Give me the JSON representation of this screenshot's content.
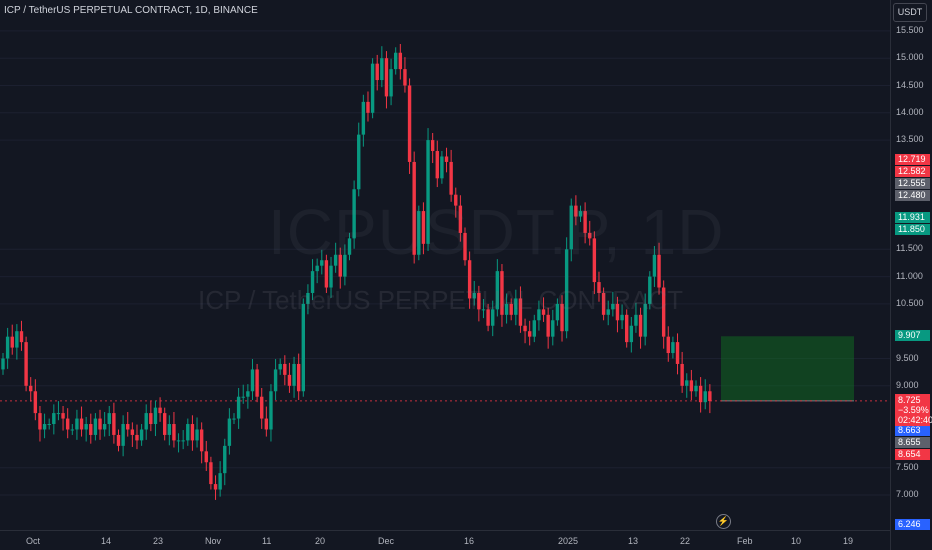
{
  "header": {
    "title": "ICP / TetherUS PERPETUAL CONTRACT, 1D, BINANCE"
  },
  "watermark": {
    "ticker": "ICPUSDT.P, 1D",
    "description": "ICP / TetherUS PERPETUAL CONTRACT"
  },
  "currency_button": {
    "label": "USDT"
  },
  "price_axis": {
    "labels": [
      "15.500",
      "15.000",
      "14.500",
      "14.000",
      "13.500",
      "11.500",
      "11.000",
      "10.500",
      "9.500",
      "9.000",
      "7.500",
      "7.000"
    ]
  },
  "time_axis": {
    "labels": [
      "Oct",
      "14",
      "23",
      "Nov",
      "11",
      "20",
      "Dec",
      "16",
      "2025",
      "13",
      "22",
      "Feb",
      "10",
      "19"
    ]
  },
  "price_badges": [
    {
      "value": "12.719",
      "color": "#f23645"
    },
    {
      "value": "12.582",
      "color": "#f23645"
    },
    {
      "value": "12.555",
      "color": "#5d606b"
    },
    {
      "value": "12.480",
      "color": "#5d606b"
    },
    {
      "value": "11.931",
      "color": "#089981"
    },
    {
      "value": "11.850",
      "color": "#089981"
    },
    {
      "value": "9.907",
      "color": "#089981"
    },
    {
      "value": "8.663",
      "color": "#2962ff"
    },
    {
      "value": "8.655",
      "color": "#5d606b"
    },
    {
      "value": "8.654",
      "color": "#f23645"
    },
    {
      "value": "6.246",
      "color": "#2962ff"
    }
  ],
  "last_price": {
    "value": "8.725",
    "change": "−3.59%",
    "countdown": "02:42:40",
    "color": "#f23645"
  },
  "colors": {
    "up": "#089981",
    "down": "#f23645",
    "background": "#131722",
    "zone": "#1e5b25"
  },
  "icons": {
    "live": "lightning-icon"
  },
  "chart_data": {
    "type": "candlestick",
    "title": "ICP / TetherUS PERPETUAL CONTRACT, 1D, BINANCE",
    "timeframe": "1D",
    "currency": "USDT",
    "ylim": [
      6.6,
      15.8
    ],
    "x_ticks": [
      "Oct",
      "14",
      "23",
      "Nov",
      "11",
      "20",
      "Dec",
      "16",
      "2025",
      "13",
      "22",
      "Feb",
      "10",
      "19"
    ],
    "y_ticks": [
      7.0,
      7.5,
      9.0,
      9.5,
      10.5,
      11.0,
      11.5,
      13.5,
      14.0,
      14.5,
      15.0,
      15.5
    ],
    "closes": [
      9.5,
      9.9,
      9.7,
      10.0,
      9.8,
      9.0,
      8.9,
      8.5,
      8.2,
      8.3,
      8.3,
      8.5,
      8.5,
      8.4,
      8.2,
      8.2,
      8.4,
      8.2,
      8.3,
      8.1,
      8.4,
      8.2,
      8.3,
      8.5,
      8.1,
      7.9,
      8.3,
      8.2,
      8.1,
      8.0,
      8.2,
      8.5,
      8.3,
      8.6,
      8.5,
      8.1,
      8.3,
      8.0,
      8.0,
      8.0,
      8.3,
      8.0,
      8.2,
      7.8,
      7.6,
      7.2,
      7.1,
      7.4,
      7.9,
      8.4,
      8.4,
      8.8,
      8.8,
      8.9,
      9.3,
      8.8,
      8.4,
      8.2,
      8.9,
      9.3,
      9.4,
      9.2,
      9.0,
      9.4,
      8.9,
      10.5,
      10.7,
      11.1,
      11.2,
      11.3,
      10.8,
      11.2,
      11.4,
      11.0,
      11.4,
      11.7,
      12.6,
      13.6,
      14.2,
      14.0,
      14.9,
      14.6,
      15.0,
      14.3,
      14.8,
      15.1,
      14.8,
      14.5,
      13.1,
      11.4,
      12.2,
      11.6,
      13.5,
      13.3,
      12.8,
      13.2,
      13.1,
      12.5,
      12.3,
      11.8,
      11.3,
      10.6,
      10.7,
      10.4,
      10.4,
      10.1,
      10.4,
      11.1,
      10.3,
      10.5,
      10.3,
      10.6,
      10.1,
      10.0,
      9.9,
      10.2,
      10.4,
      10.3,
      9.9,
      10.2,
      10.5,
      10.0,
      11.5,
      12.3,
      12.1,
      12.2,
      11.8,
      11.7,
      10.9,
      10.7,
      10.3,
      10.4,
      10.5,
      10.2,
      10.3,
      9.8,
      10.1,
      10.3,
      9.9,
      10.5,
      11.0,
      11.4,
      10.8,
      9.9,
      9.6,
      9.8,
      9.4,
      9.0,
      9.1,
      8.9,
      9.0,
      8.7,
      8.9,
      8.72
    ]
  }
}
